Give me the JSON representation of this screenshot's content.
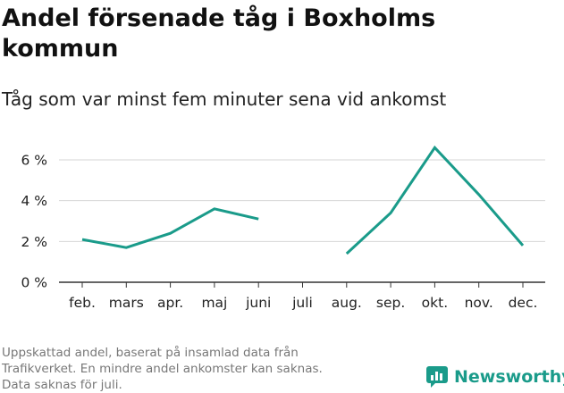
{
  "title": "Andel försenade tåg i Boxholms kommun",
  "subtitle": "Tåg som var minst fem minuter sena vid ankomst",
  "footer": {
    "line1": "Uppskattad andel, baserat på insamlad data från",
    "line2": "Trafikverket. En mindre andel ankomster kan saknas.",
    "line3": "Data saknas för juli."
  },
  "brand": {
    "name": "Newsworthy",
    "color": "#1a9b8a"
  },
  "colors": {
    "line": "#1a9b8a",
    "grid": "#d6d6d6",
    "axis": "#333333"
  },
  "chart_data": {
    "type": "line",
    "categories": [
      "feb.",
      "mars",
      "apr.",
      "maj",
      "juni",
      "juli",
      "aug.",
      "sep.",
      "okt.",
      "nov.",
      "dec."
    ],
    "series": [
      {
        "values": [
          2.1,
          1.7,
          2.4,
          3.6,
          3.1,
          null,
          1.4,
          3.4,
          6.6,
          4.3,
          1.8
        ]
      }
    ],
    "yticks": [
      0,
      2,
      4,
      6
    ],
    "ytick_labels": [
      "0 %",
      "2 %",
      "4 %",
      "6 %"
    ],
    "ylim": [
      0,
      7
    ],
    "grid": true
  }
}
